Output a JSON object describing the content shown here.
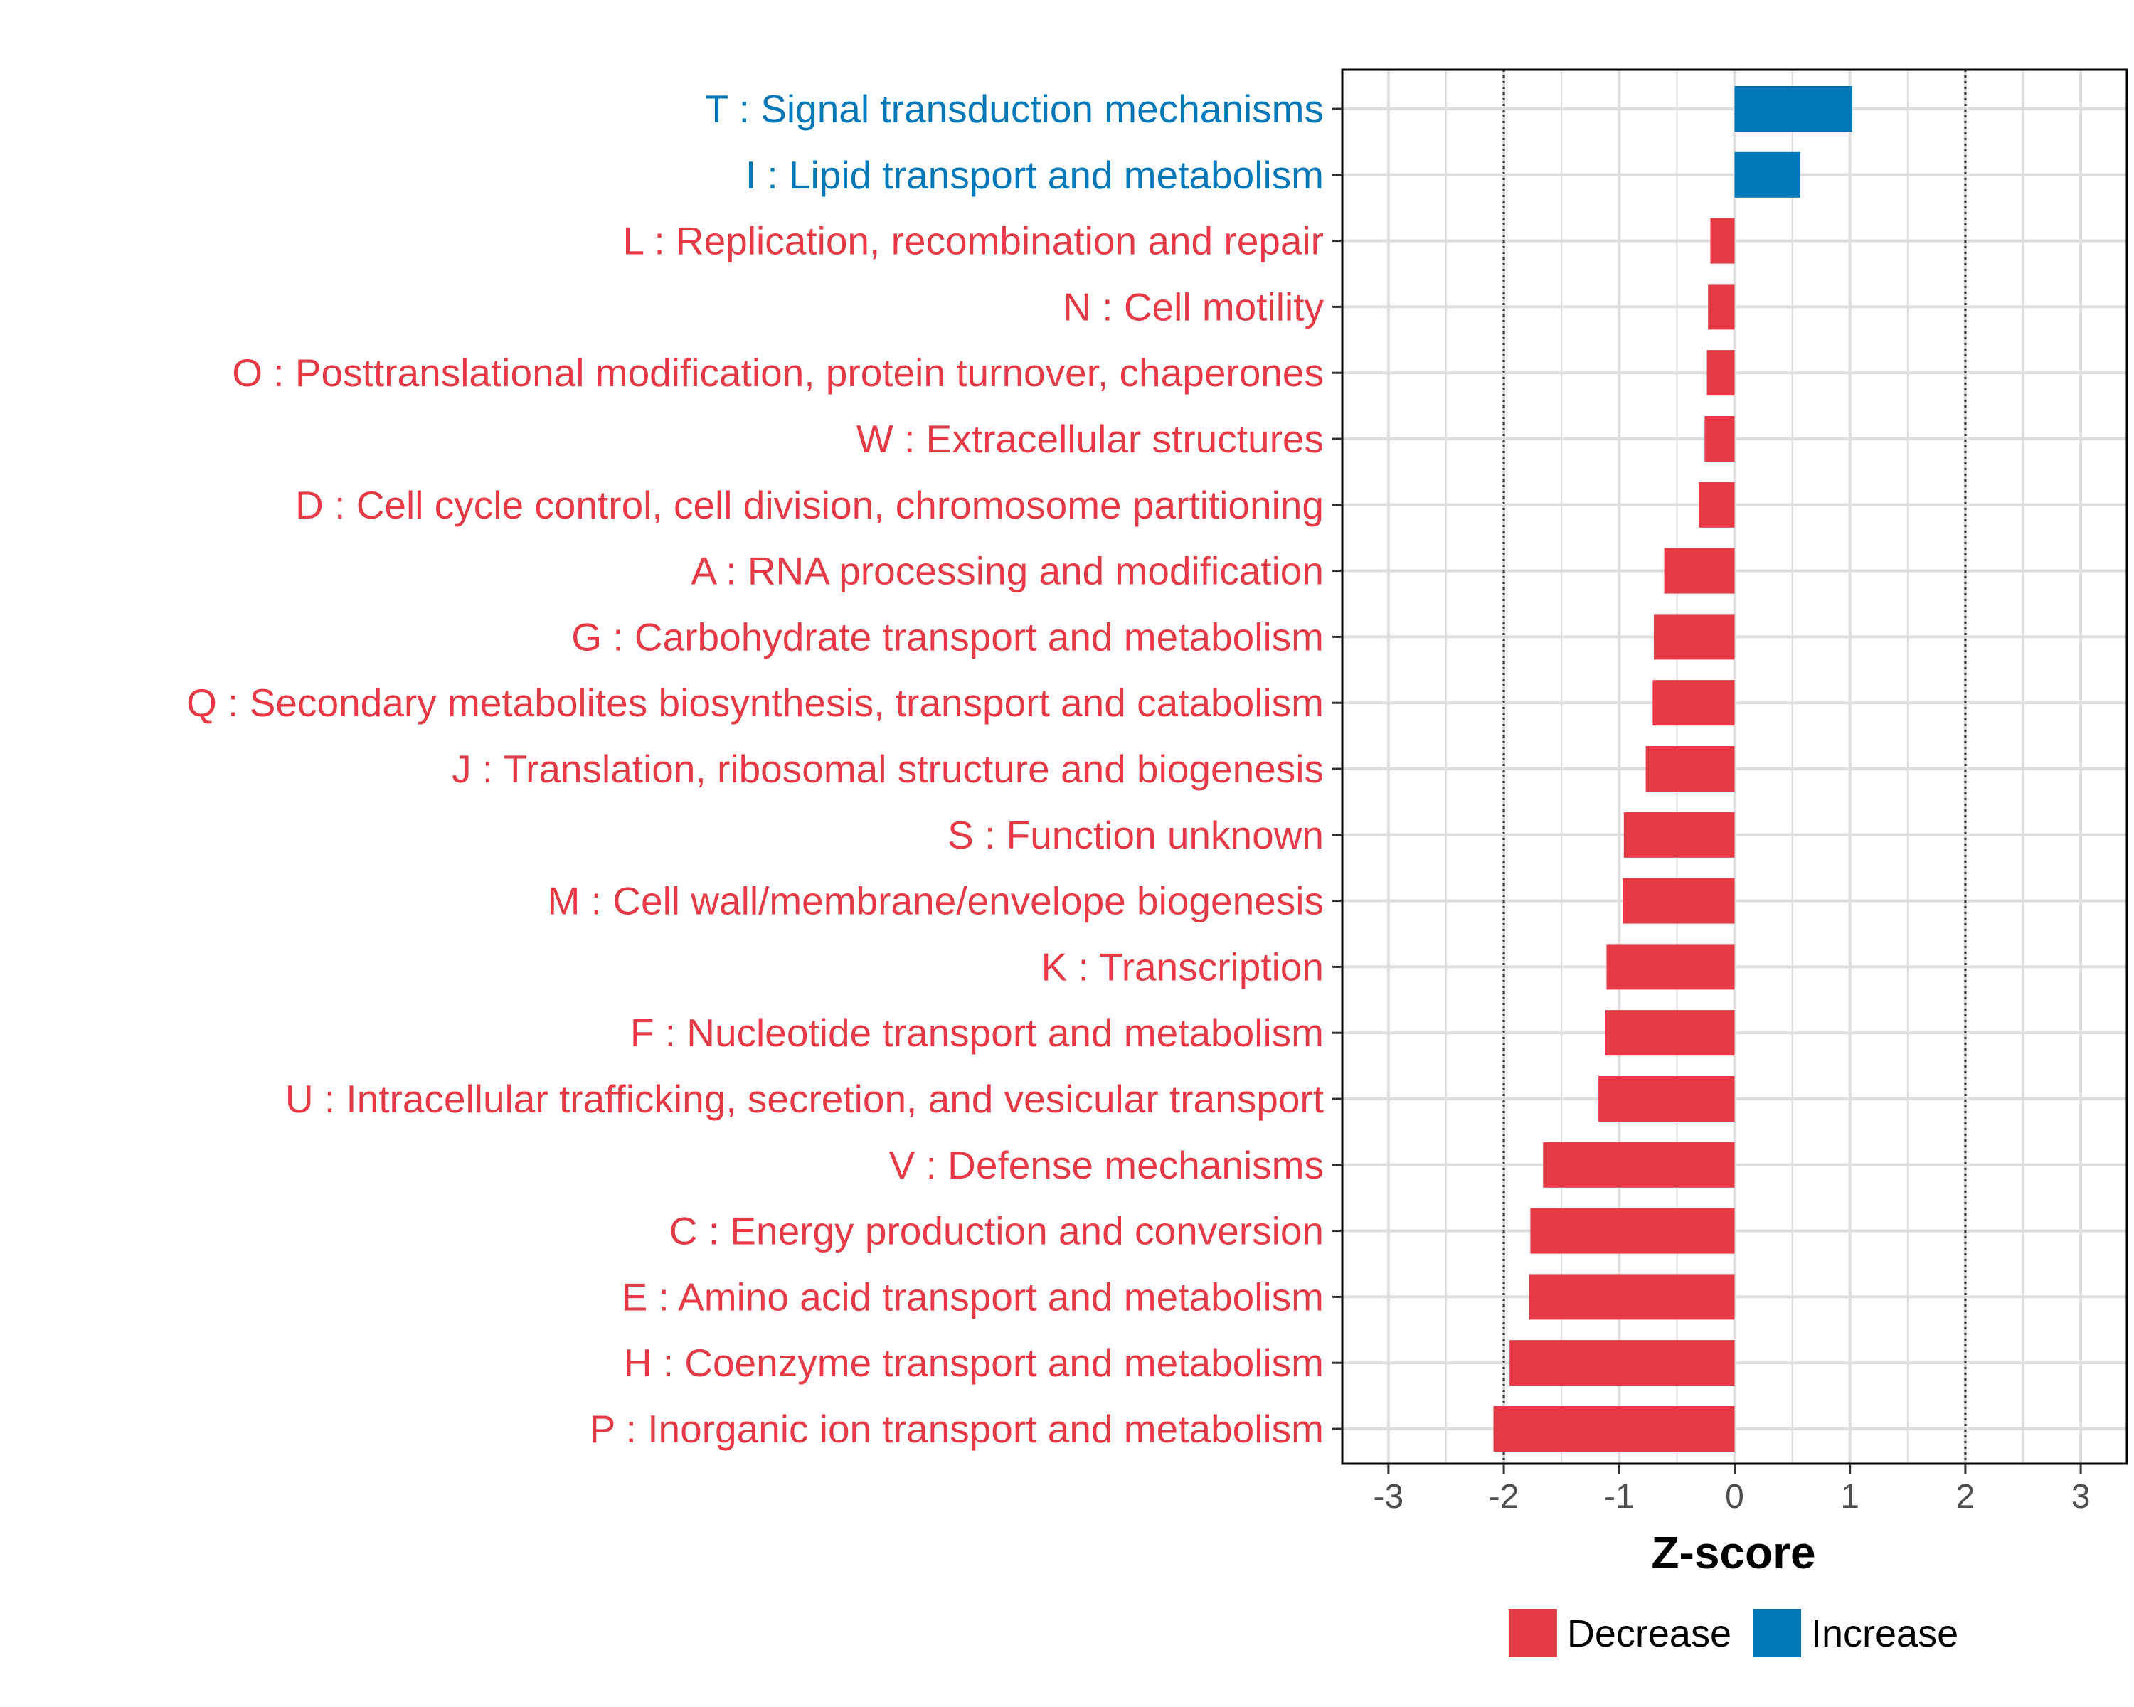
{
  "chart_data": {
    "type": "bar",
    "orientation": "horizontal",
    "xlabel": "Z-score",
    "ylabel": "",
    "xlim": [
      -3.4,
      3.4
    ],
    "x_ticks": [
      -3,
      -2,
      -1,
      0,
      1,
      2,
      3
    ],
    "x_tick_labels": [
      "-3",
      "-2",
      "-1",
      "0",
      "1",
      "2",
      "3"
    ],
    "reference_lines": [
      -2,
      2
    ],
    "grid": true,
    "legend_position": "bottom",
    "legend": [
      {
        "name": "Decrease",
        "color": "#E63946"
      },
      {
        "name": "Increase",
        "color": "#0077B6"
      }
    ],
    "categories": [
      "T : Signal transduction mechanisms",
      "I : Lipid transport and metabolism",
      "L : Replication, recombination and repair",
      "N : Cell motility",
      "O : Posttranslational modification, protein turnover, chaperones",
      "W : Extracellular structures",
      "D : Cell cycle control, cell division, chromosome partitioning",
      "A : RNA processing and modification",
      "G : Carbohydrate transport and metabolism",
      "Q : Secondary metabolites biosynthesis, transport and catabolism",
      "J : Translation, ribosomal structure and biogenesis",
      "S : Function unknown",
      "M : Cell wall/membrane/envelope biogenesis",
      "K : Transcription",
      "F : Nucleotide transport and metabolism",
      "U : Intracellular trafficking, secretion, and vesicular transport",
      "V : Defense mechanisms",
      "C : Energy production and conversion",
      "E : Amino acid transport and metabolism",
      "H : Coenzyme transport and metabolism",
      "P : Inorganic ion transport and metabolism"
    ],
    "values": [
      1.02,
      0.57,
      -0.21,
      -0.23,
      -0.24,
      -0.26,
      -0.31,
      -0.61,
      -0.7,
      -0.71,
      -0.77,
      -0.96,
      -0.97,
      -1.11,
      -1.12,
      -1.18,
      -1.66,
      -1.77,
      -1.78,
      -1.95,
      -2.09
    ],
    "groups": [
      "Increase",
      "Increase",
      "Decrease",
      "Decrease",
      "Decrease",
      "Decrease",
      "Decrease",
      "Decrease",
      "Decrease",
      "Decrease",
      "Decrease",
      "Decrease",
      "Decrease",
      "Decrease",
      "Decrease",
      "Decrease",
      "Decrease",
      "Decrease",
      "Decrease",
      "Decrease",
      "Decrease"
    ]
  }
}
